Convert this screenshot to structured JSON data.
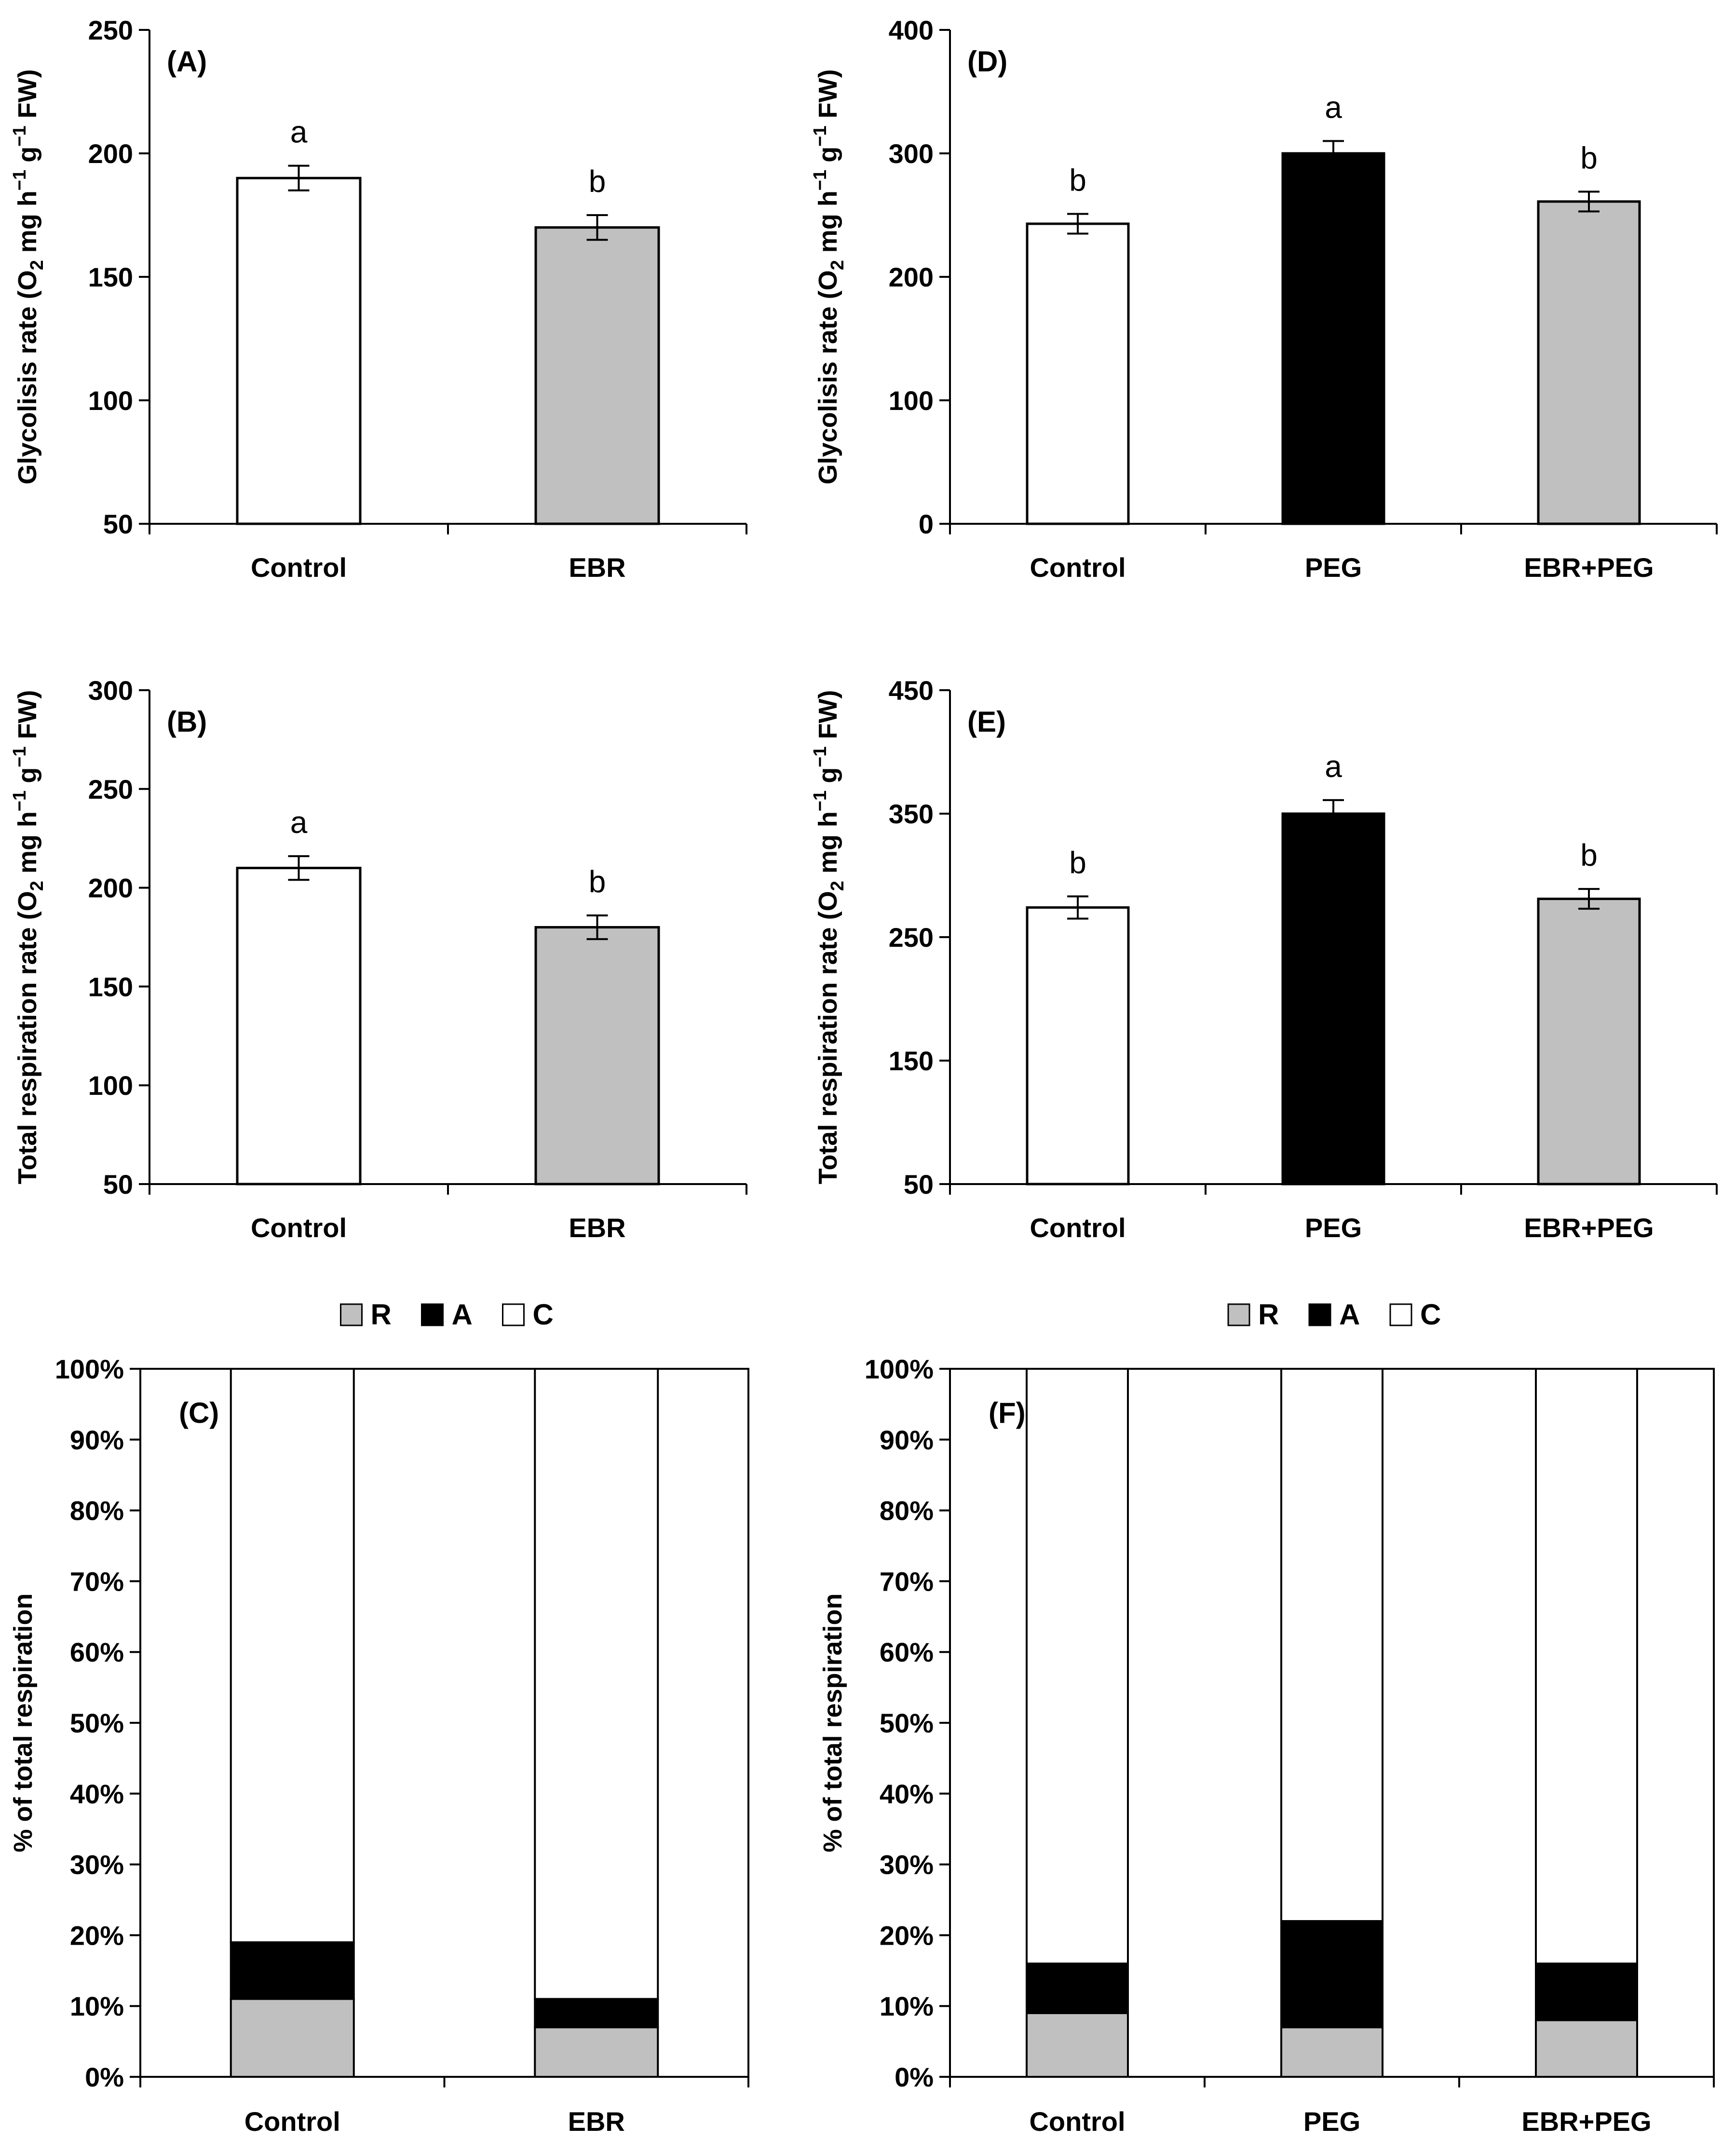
{
  "colors": {
    "Control": "#ffffff",
    "EBR": "#c0c0c0",
    "PEG": "#000000",
    "EBR+PEG": "#c0c0c0",
    "R": "#c0c0c0",
    "A": "#000000",
    "C": "#ffffff"
  },
  "chart_data": [
    {
      "id": "A",
      "type": "bar",
      "panel_label": "(A)",
      "categories": [
        "Control",
        "EBR"
      ],
      "values": [
        190,
        170
      ],
      "errors": [
        5,
        5
      ],
      "letters": [
        "a",
        "b"
      ],
      "ylabel": "Glycolisis rate (O2 mg h−1 g−1 FW)",
      "ylim": [
        50,
        250
      ],
      "yticks": [
        50,
        100,
        150,
        200,
        250
      ]
    },
    {
      "id": "B",
      "type": "bar",
      "panel_label": "(B)",
      "categories": [
        "Control",
        "EBR"
      ],
      "values": [
        210,
        180
      ],
      "errors": [
        6,
        6
      ],
      "letters": [
        "a",
        "b"
      ],
      "ylabel": "Total respiration rate (O2 mg h−1 g−1 FW)",
      "ylim": [
        50,
        300
      ],
      "yticks": [
        50,
        100,
        150,
        200,
        250,
        300
      ]
    },
    {
      "id": "C",
      "type": "bar",
      "stacked": true,
      "panel_label": "(C)",
      "categories": [
        "Control",
        "EBR"
      ],
      "series": [
        {
          "name": "R",
          "values": [
            11,
            7
          ]
        },
        {
          "name": "A",
          "values": [
            8,
            4
          ]
        },
        {
          "name": "C",
          "values": [
            81,
            89
          ]
        }
      ],
      "ylabel": "% of total respiration",
      "ylim": [
        0,
        100
      ],
      "yticks": [
        "0%",
        "10%",
        "20%",
        "30%",
        "40%",
        "50%",
        "60%",
        "70%",
        "80%",
        "90%",
        "100%"
      ],
      "legend": "top-center"
    },
    {
      "id": "D",
      "type": "bar",
      "panel_label": "(D)",
      "categories": [
        "Control",
        "PEG",
        "EBR+PEG"
      ],
      "values": [
        243,
        300,
        261
      ],
      "errors": [
        8,
        10,
        8
      ],
      "letters": [
        "b",
        "a",
        "b"
      ],
      "ylabel": "Glycolisis rate (O2 mg h−1 g−1 FW)",
      "ylim": [
        0,
        400
      ],
      "yticks": [
        0,
        100,
        200,
        300,
        400
      ]
    },
    {
      "id": "E",
      "type": "bar",
      "panel_label": "(E)",
      "categories": [
        "Control",
        "PEG",
        "EBR+PEG"
      ],
      "values": [
        274,
        350,
        281
      ],
      "errors": [
        9,
        11,
        8
      ],
      "letters": [
        "b",
        "a",
        "b"
      ],
      "ylabel": "Total respiration rate (O2 mg h−1 g−1 FW)",
      "ylim": [
        50,
        450
      ],
      "yticks": [
        50,
        150,
        250,
        350,
        450
      ]
    },
    {
      "id": "F",
      "type": "bar",
      "stacked": true,
      "panel_label": "(F)",
      "categories": [
        "Control",
        "PEG",
        "EBR+PEG"
      ],
      "series": [
        {
          "name": "R",
          "values": [
            9,
            7,
            8
          ]
        },
        {
          "name": "A",
          "values": [
            7,
            15,
            8
          ]
        },
        {
          "name": "C",
          "values": [
            84,
            78,
            84
          ]
        }
      ],
      "ylabel": "% of total respiration",
      "ylim": [
        0,
        100
      ],
      "yticks": [
        "0%",
        "10%",
        "20%",
        "30%",
        "40%",
        "50%",
        "60%",
        "70%",
        "80%",
        "90%",
        "100%"
      ],
      "legend": "top-center"
    }
  ]
}
